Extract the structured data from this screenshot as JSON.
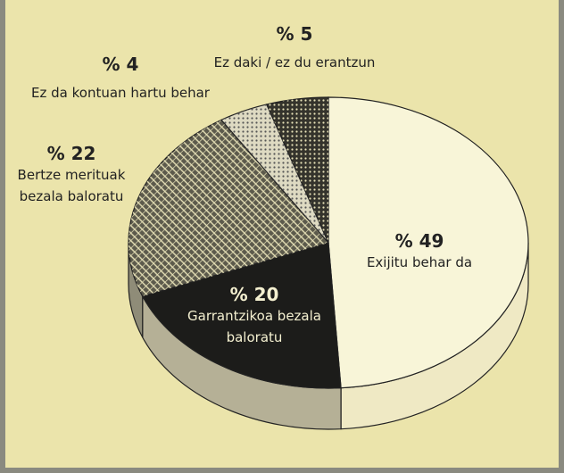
{
  "chart_data": {
    "type": "pie",
    "categories": [
      "Exijitu behar da",
      "Garrantzikoa bezala baloratu",
      "Bertze merituak bezala baloratu",
      "Ez da kontuan hartu behar",
      "Ez daki / ez du erantzun"
    ],
    "values": [
      49,
      20,
      22,
      4,
      5
    ],
    "value_labels": [
      "% 49",
      "% 20",
      "% 22",
      "% 4",
      "% 5"
    ],
    "colors": [
      "#f8f5d8",
      "#1c1c1a",
      "#5c5a4c",
      "#dedac2",
      "#34332c"
    ]
  }
}
